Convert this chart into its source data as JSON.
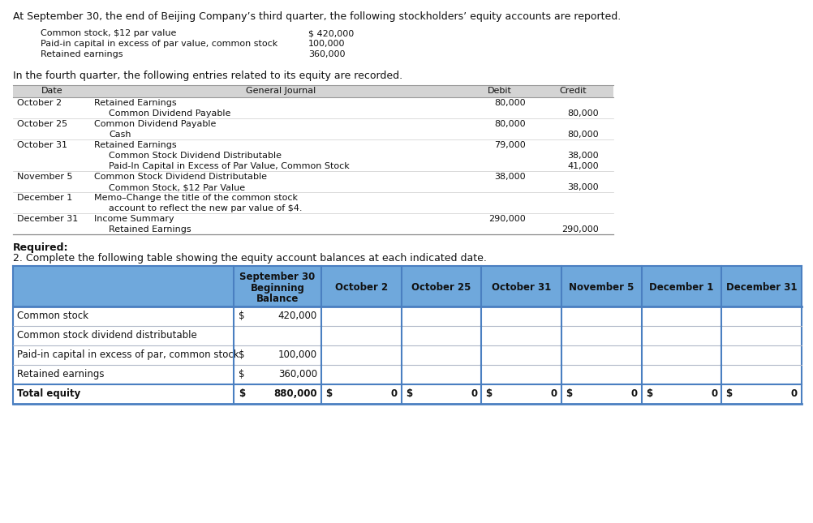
{
  "bg_color": "#ffffff",
  "intro_text": "At September 30, the end of Beijing Company’s third quarter, the following stockholders’ equity accounts are reported.",
  "accounts": [
    {
      "label": "Common stock, $12 par value",
      "value": "$ 420,000"
    },
    {
      "label": "Paid-in capital in excess of par value, common stock",
      "value": "100,000"
    },
    {
      "label": "Retained earnings",
      "value": "360,000"
    }
  ],
  "fourth_quarter_text": "In the fourth quarter, the following entries related to its equity are recorded.",
  "journal_rows": [
    {
      "date": "October 2",
      "entries": [
        {
          "text": "Retained Earnings",
          "indent": 0,
          "debit": "80,000",
          "credit": ""
        },
        {
          "text": "Common Dividend Payable",
          "indent": 1,
          "debit": "",
          "credit": "80,000"
        }
      ]
    },
    {
      "date": "October 25",
      "entries": [
        {
          "text": "Common Dividend Payable",
          "indent": 0,
          "debit": "80,000",
          "credit": ""
        },
        {
          "text": "Cash",
          "indent": 1,
          "debit": "",
          "credit": "80,000"
        }
      ]
    },
    {
      "date": "October 31",
      "entries": [
        {
          "text": "Retained Earnings",
          "indent": 0,
          "debit": "79,000",
          "credit": ""
        },
        {
          "text": "Common Stock Dividend Distributable",
          "indent": 1,
          "debit": "",
          "credit": "38,000"
        },
        {
          "text": "Paid-In Capital in Excess of Par Value, Common Stock",
          "indent": 1,
          "debit": "",
          "credit": "41,000"
        }
      ]
    },
    {
      "date": "November 5",
      "entries": [
        {
          "text": "Common Stock Dividend Distributable",
          "indent": 0,
          "debit": "38,000",
          "credit": ""
        },
        {
          "text": "Common Stock, $12 Par Value",
          "indent": 1,
          "debit": "",
          "credit": "38,000"
        }
      ]
    },
    {
      "date": "December 1",
      "entries": [
        {
          "text": "Memo–Change the title of the common stock",
          "indent": 0,
          "debit": "",
          "credit": ""
        },
        {
          "text": "account to reflect the new par value of $4.",
          "indent": 1,
          "debit": "",
          "credit": ""
        }
      ]
    },
    {
      "date": "December 31",
      "entries": [
        {
          "text": "Income Summary",
          "indent": 0,
          "debit": "290,000",
          "credit": ""
        },
        {
          "text": "Retained Earnings",
          "indent": 1,
          "debit": "",
          "credit": "290,000"
        }
      ]
    }
  ],
  "required_label": "Required:",
  "required_text": "2. Complete the following table showing the equity account balances at each indicated date.",
  "table_header_bg": "#6fa8dc",
  "table_row_bg": "#ffffff",
  "table_border_color": "#4a7fc1",
  "table_columns": [
    "September 30\nBeginning\nBalance",
    "October 2",
    "October 25",
    "October 31",
    "November 5",
    "December 1",
    "December 31"
  ],
  "table_rows": [
    {
      "label": "Common stock",
      "dollar": "$",
      "val": "420,000",
      "rest": [
        "",
        "",
        "",
        "",
        "",
        ""
      ]
    },
    {
      "label": "Common stock dividend distributable",
      "dollar": "",
      "val": "",
      "rest": [
        "",
        "",
        "",
        "",
        "",
        ""
      ]
    },
    {
      "label": "Paid-in capital in excess of par, common stock",
      "dollar": "$",
      "val": "100,000",
      "rest": [
        "",
        "",
        "",
        "",
        "",
        ""
      ]
    },
    {
      "label": "Retained earnings",
      "dollar": "$",
      "val": "360,000",
      "rest": [
        "",
        "",
        "",
        "",
        "",
        ""
      ]
    },
    {
      "label": "Total equity",
      "dollar": "$",
      "val": "880,000",
      "rest": [
        "0",
        "0",
        "0",
        "0",
        "0",
        "0"
      ]
    }
  ],
  "journal_bg_color": "#d4d4d4",
  "monospace_font": "Courier New",
  "sans_font": "Arial"
}
